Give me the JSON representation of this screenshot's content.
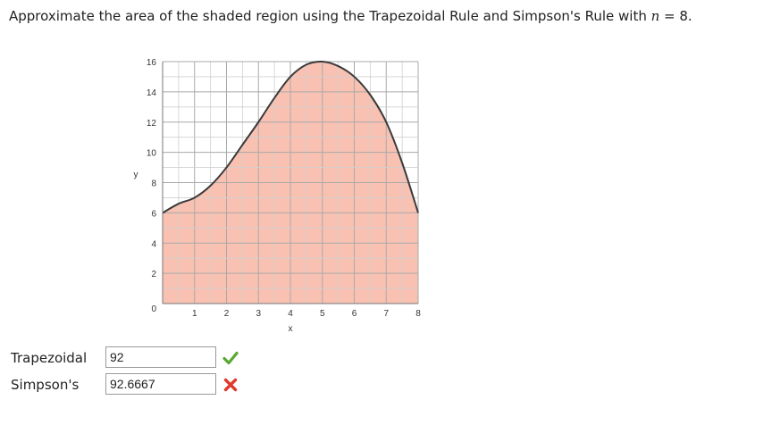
{
  "question": {
    "text_before": "Approximate the area of the shaded region using the Trapezoidal Rule and Simpson's Rule with ",
    "variable": "n",
    "text_after": " = 8."
  },
  "chart_data": {
    "type": "area",
    "xlabel": "x",
    "ylabel": "y",
    "xlim": [
      0,
      8
    ],
    "ylim": [
      0,
      16
    ],
    "x_ticks": [
      1,
      2,
      3,
      4,
      5,
      6,
      7,
      8
    ],
    "y_ticks": [
      0,
      2,
      4,
      6,
      8,
      10,
      12,
      14,
      16
    ],
    "grid": true,
    "fill_color": "#f9c1b2",
    "line_color": "#3a3a3a",
    "series": [
      {
        "x": [
          0,
          0.5,
          1,
          1.5,
          2,
          2.5,
          3,
          3.5,
          4,
          4.5,
          5,
          5.5,
          6,
          6.5,
          7,
          7.5,
          8
        ],
        "y": [
          6,
          6.6,
          7,
          7.8,
          9,
          10.5,
          12,
          13.6,
          15,
          15.8,
          16,
          15.7,
          15,
          13.8,
          12,
          9.3,
          6
        ]
      }
    ]
  },
  "answers": {
    "trapezoidal": {
      "label": "Trapezoidal",
      "value": "92",
      "status": "correct",
      "status_icon": "check-icon",
      "status_color": "#5aa832"
    },
    "simpsons": {
      "label": "Simpson's",
      "value": "92.6667",
      "status": "incorrect",
      "status_icon": "x-icon",
      "status_color": "#e0392b"
    }
  }
}
